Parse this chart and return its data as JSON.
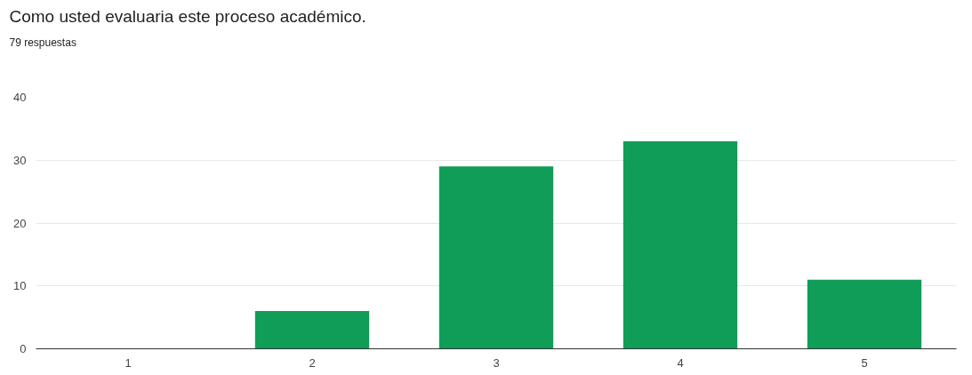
{
  "chart_data": {
    "type": "bar",
    "title": "Como usted evaluaria este proceso académico.",
    "subtitle": "79 respuestas",
    "categories": [
      "1",
      "2",
      "3",
      "4",
      "5"
    ],
    "values": [
      0,
      6,
      29,
      33,
      11
    ],
    "color": "#0f9d58",
    "ylim": [
      0,
      40
    ],
    "yticks": [
      0,
      10,
      20,
      30,
      40
    ],
    "grid": "y"
  }
}
